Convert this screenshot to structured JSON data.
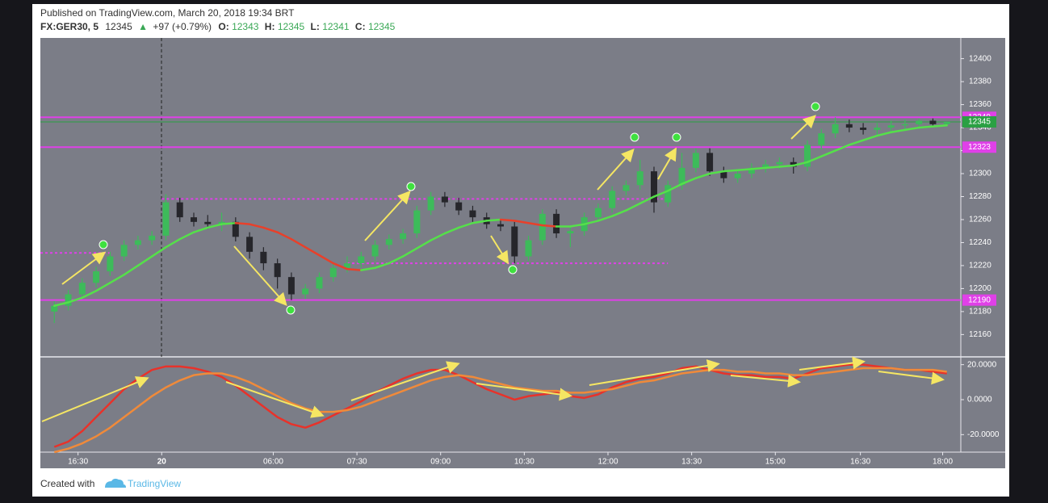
{
  "header": {
    "published": "Published on TradingView.com, March 20, 2018 19:34 BRT",
    "symbol": "FX:GER30, 5",
    "arrow": "▲",
    "change": "+97 (+0.79%)",
    "o_label": "O:",
    "h_label": "H:",
    "l_label": "L:",
    "c_label": "C:"
  },
  "chart_data": [
    {
      "type": "candlestick",
      "x": [
        0,
        1,
        2,
        3,
        4,
        5,
        6,
        7,
        8,
        9,
        10,
        11,
        12,
        13,
        14,
        15,
        16,
        17,
        18,
        19,
        20,
        21,
        22,
        23,
        24,
        25,
        26,
        27,
        28,
        29,
        30,
        31,
        32,
        33,
        34,
        35,
        36,
        37,
        38,
        39,
        40,
        41,
        42,
        43,
        44,
        45,
        46,
        47,
        48,
        49,
        50,
        51,
        52,
        53,
        54,
        55,
        56,
        57,
        58,
        59,
        60,
        61,
        62,
        63,
        64
      ],
      "open": [
        12180,
        12185,
        12195,
        12205,
        12215,
        12228,
        12238,
        12242,
        12246,
        12275,
        12262,
        12258,
        12256,
        12258,
        12245,
        12232,
        12222,
        12210,
        12195,
        12200,
        12210,
        12218,
        12222,
        12228,
        12238,
        12243,
        12248,
        12268,
        12280,
        12275,
        12268,
        12262,
        12256,
        12254,
        12228,
        12242,
        12265,
        12248,
        12250,
        12262,
        12270,
        12285,
        12290,
        12302,
        12275,
        12290,
        12305,
        12318,
        12302,
        12296,
        12300,
        12305,
        12308,
        12310,
        12306,
        12325,
        12335,
        12343,
        12340,
        12338,
        12340,
        12342,
        12343,
        12346,
        12343
      ],
      "high": [
        12189,
        12199,
        12209,
        12219,
        12232,
        12242,
        12246,
        12250,
        12282,
        12279,
        12266,
        12264,
        12266,
        12262,
        12249,
        12236,
        12226,
        12214,
        12204,
        12214,
        12222,
        12228,
        12232,
        12242,
        12247,
        12252,
        12272,
        12284,
        12284,
        12279,
        12272,
        12266,
        12260,
        12258,
        12246,
        12269,
        12269,
        12254,
        12266,
        12274,
        12289,
        12294,
        12312,
        12306,
        12294,
        12318,
        12322,
        12322,
        12306,
        12304,
        12309,
        12312,
        12314,
        12314,
        12329,
        12339,
        12349,
        12347,
        12344,
        12344,
        12346,
        12347,
        12348,
        12348,
        12345
      ],
      "low": [
        12170,
        12181,
        12191,
        12201,
        12211,
        12224,
        12234,
        12238,
        12242,
        12258,
        12254,
        12252,
        12250,
        12241,
        12226,
        12216,
        12200,
        12190,
        12191,
        12196,
        12206,
        12214,
        12218,
        12224,
        12234,
        12239,
        12244,
        12264,
        12271,
        12264,
        12258,
        12252,
        12250,
        12222,
        12224,
        12238,
        12244,
        12236,
        12246,
        12258,
        12266,
        12281,
        12286,
        12266,
        12271,
        12286,
        12301,
        12298,
        12292,
        12292,
        12296,
        12301,
        12304,
        12300,
        12302,
        12321,
        12331,
        12336,
        12334,
        12334,
        12336,
        12338,
        12340,
        12341,
        12341
      ],
      "close": [
        12185,
        12195,
        12205,
        12215,
        12228,
        12238,
        12242,
        12246,
        12275,
        12262,
        12258,
        12256,
        12258,
        12245,
        12232,
        12222,
        12210,
        12195,
        12200,
        12210,
        12218,
        12222,
        12228,
        12238,
        12243,
        12248,
        12268,
        12280,
        12275,
        12268,
        12262,
        12256,
        12254,
        12228,
        12242,
        12265,
        12248,
        12250,
        12262,
        12270,
        12285,
        12290,
        12302,
        12275,
        12290,
        12305,
        12318,
        12302,
        12296,
        12300,
        12305,
        12308,
        12310,
        12306,
        12325,
        12335,
        12343,
        12340,
        12338,
        12340,
        12342,
        12343,
        12346,
        12343,
        12345
      ],
      "up_color": "#3dbb5a",
      "down_color": "#26262b",
      "ma": {
        "values": [
          12185,
          12188,
          12192,
          12198,
          12205,
          12212,
          12220,
          12228,
          12236,
          12243,
          12249,
          12253,
          12256,
          12257,
          12256,
          12253,
          12249,
          12243,
          12236,
          12229,
          12222,
          12217,
          12216,
          12218,
          12222,
          12228,
          12235,
          12242,
          12248,
          12253,
          12257,
          12259,
          12260,
          12259,
          12257,
          12255,
          12254,
          12254,
          12256,
          12259,
          12263,
          12268,
          12274,
          12280,
          12285,
          12291,
          12296,
          12300,
          12302,
          12303,
          12304,
          12305,
          12306,
          12307,
          12310,
          12315,
          12320,
          12325,
          12329,
          12333,
          12336,
          12338,
          12340,
          12341,
          12342
        ],
        "up_color": "#55e04a",
        "down_color": "#e8402a"
      },
      "levels": [
        {
          "value": 12349,
          "color": "#e040e8"
        },
        {
          "value": 12323,
          "color": "#e040e8"
        },
        {
          "value": 12190,
          "color": "#e040e8"
        }
      ],
      "dotted_levels": [
        {
          "value": 12231,
          "from": -1,
          "to": 4
        },
        {
          "value": 12278,
          "from": 7.7,
          "to": 44
        },
        {
          "value": 12222,
          "from": 21,
          "to": 44
        }
      ],
      "level_color": "#e040e8",
      "last_color": "#2aa043",
      "xlim": [
        -1,
        65
      ],
      "ylim": [
        12142,
        12418
      ],
      "yticks": [
        12160,
        12180,
        12200,
        12220,
        12240,
        12260,
        12280,
        12300,
        12320,
        12340,
        12360,
        12380,
        12400
      ],
      "xticks": [
        {
          "value": 1.7,
          "label": "16:30"
        },
        {
          "value": 7.7,
          "label": "20"
        },
        {
          "value": 15.7,
          "label": "06:00"
        },
        {
          "value": 21.7,
          "label": "07:30"
        },
        {
          "value": 27.7,
          "label": "09:00"
        },
        {
          "value": 33.7,
          "label": "10:30"
        },
        {
          "value": 39.7,
          "label": "12:00"
        },
        {
          "value": 45.7,
          "label": "13:30"
        },
        {
          "value": 51.7,
          "label": "15:00"
        },
        {
          "value": 57.8,
          "label": "16:30"
        },
        {
          "value": 63.7,
          "label": "18:00"
        }
      ]
    },
    {
      "type": "line",
      "series": [
        {
          "color": "#e8322a",
          "values": [
            -27,
            -24,
            -18,
            -10,
            -2,
            6,
            12,
            17,
            19,
            19,
            18,
            16,
            13,
            8,
            2,
            -4,
            -10,
            -14,
            -16,
            -13,
            -9,
            -5,
            -1,
            4,
            8,
            12,
            15,
            17,
            17,
            14,
            10,
            6,
            3,
            0,
            2,
            3,
            4,
            2,
            1,
            3,
            7,
            10,
            12,
            13,
            15,
            18,
            19,
            17,
            15,
            14,
            14,
            13,
            13,
            12,
            15,
            18,
            19,
            20,
            20,
            19,
            18,
            17,
            17,
            16,
            15
          ]
        },
        {
          "color": "#f08a3a",
          "values": [
            -30,
            -28,
            -25,
            -21,
            -16,
            -10,
            -4,
            2,
            7,
            11,
            14,
            15,
            15,
            13,
            10,
            6,
            2,
            -2,
            -5,
            -7,
            -7,
            -6,
            -4,
            -1,
            2,
            5,
            8,
            11,
            13,
            14,
            13,
            11,
            9,
            7,
            6,
            5,
            5,
            4,
            4,
            5,
            6,
            8,
            10,
            11,
            13,
            15,
            16,
            17,
            17,
            16,
            16,
            15,
            15,
            14,
            14,
            15,
            16,
            17,
            18,
            18,
            18,
            17,
            17,
            17,
            16
          ]
        }
      ],
      "ylim": [
        -30,
        24
      ],
      "yticks": [
        {
          "value": 20,
          "label": "20.0000"
        },
        {
          "value": 0,
          "label": "0.0000"
        },
        {
          "value": -20,
          "label": "-20.0000"
        }
      ]
    }
  ],
  "footer": {
    "created": "Created with",
    "brand": "TradingView"
  }
}
